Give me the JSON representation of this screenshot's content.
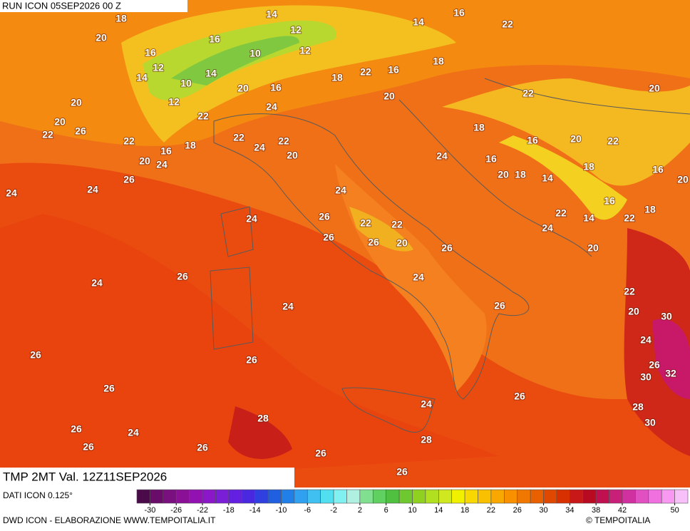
{
  "header": {
    "run": "RUN ICON 05SEP2026 00 Z"
  },
  "map": {
    "labels": [
      18,
      14,
      16,
      14,
      22,
      12,
      20,
      16,
      16,
      10,
      12,
      18,
      12,
      14,
      14,
      22,
      16,
      18,
      10,
      20,
      16,
      22,
      20,
      20,
      12,
      20,
      24,
      22,
      20,
      26,
      22,
      18,
      16,
      20,
      22,
      22,
      22,
      22,
      18,
      16,
      24,
      20,
      24,
      20,
      24,
      16,
      18,
      16,
      20,
      26,
      20,
      18,
      14,
      24,
      24,
      24,
      16,
      18,
      22,
      14,
      22,
      26,
      24,
      22,
      22,
      24,
      26,
      26,
      20,
      26,
      20,
      26,
      24,
      24,
      22,
      24,
      26,
      20,
      30,
      24,
      26,
      26,
      26,
      30,
      32,
      26,
      26,
      24,
      28,
      28,
      30,
      26,
      24,
      26,
      26,
      28,
      26,
      26
    ]
  },
  "footer": {
    "variable": "TMP 2MT Val. 12Z11SEP2026",
    "source": "DATI ICON 0.125°",
    "credit": "DWD ICON - ELABORAZIONE WWW.TEMPOITALIA.IT",
    "copyright": "© TEMPOITALIA"
  },
  "colorbar": {
    "range": [
      -32,
      52
    ],
    "ticks": [
      -30,
      -26,
      -22,
      -18,
      -14,
      -10,
      -6,
      -2,
      2,
      6,
      10,
      14,
      18,
      22,
      26,
      30,
      34,
      38,
      42,
      50
    ],
    "colors": [
      "#4b0b4b",
      "#6a0c6a",
      "#7a0f80",
      "#8a1096",
      "#9112b0",
      "#8a18c8",
      "#7a1ed8",
      "#6420e0",
      "#4a28e0",
      "#3040e0",
      "#2060e0",
      "#2080e8",
      "#30a0f0",
      "#40c0f0",
      "#50e0f0",
      "#80f0f0",
      "#b0f0e0",
      "#80e090",
      "#60d060",
      "#50c040",
      "#70c830",
      "#90d020",
      "#b0e020",
      "#d0e820",
      "#f0f000",
      "#f8d800",
      "#f8c000",
      "#f8a800",
      "#f89000",
      "#f07800",
      "#e86000",
      "#e04800",
      "#d83000",
      "#c81818",
      "#b80a20",
      "#c01050",
      "#c82078",
      "#d030a0",
      "#e050c0",
      "#f070e0",
      "#f898f0",
      "#f8c0f8"
    ]
  }
}
